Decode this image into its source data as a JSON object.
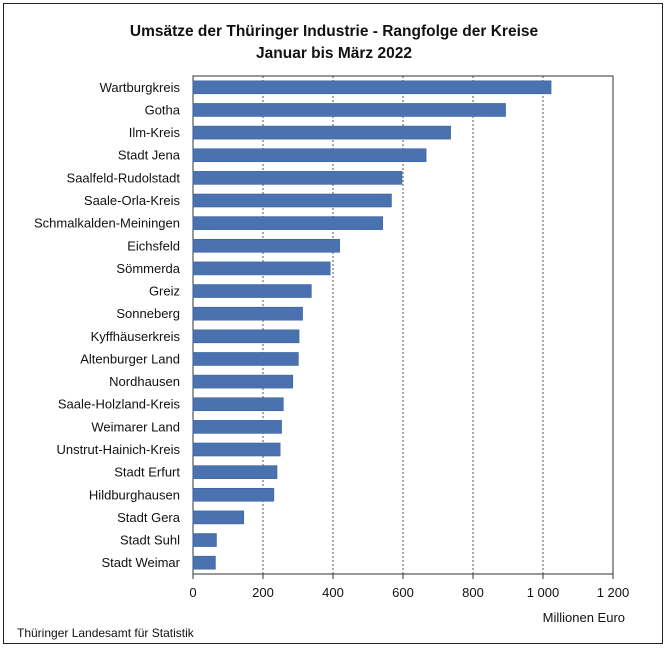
{
  "chart_data": {
    "type": "bar",
    "orientation": "horizontal",
    "title": "Umsätze der Thüringer Industrie - Rangfolge der Kreise",
    "subtitle": "Januar bis März 2022",
    "xlabel": "Millionen Euro",
    "ylabel": "",
    "xlim": [
      0,
      1200
    ],
    "xticks": [
      0,
      200,
      400,
      600,
      800,
      1000,
      1200
    ],
    "xtick_labels": [
      "0",
      "200",
      "400",
      "600",
      "800",
      "1 000",
      "1 200"
    ],
    "grid": "vertical dotted",
    "bar_color": "#4a72b0",
    "categories": [
      "Wartburgkreis",
      "Gotha",
      "Ilm-Kreis",
      "Stadt Jena",
      "Saalfeld-Rudolstadt",
      "Saale-Orla-Kreis",
      "Schmalkalden-Meiningen",
      "Eichsfeld",
      "Sömmerda",
      "Greiz",
      "Sonneberg",
      "Kyffhäuserkreis",
      "Altenburger Land",
      "Nordhausen",
      "Saale-Holzland-Kreis",
      "Weimarer Land",
      "Unstrut-Hainich-Kreis",
      "Stadt Erfurt",
      "Hildburghausen",
      "Stadt Gera",
      "Stadt Suhl",
      "Stadt Weimar"
    ],
    "values": [
      1023,
      893,
      736,
      666,
      597,
      567,
      542,
      419,
      392,
      338,
      313,
      303,
      301,
      285,
      258,
      253,
      249,
      240,
      231,
      145,
      67,
      64
    ]
  },
  "footer": "Thüringer Landesamt für Statistik"
}
